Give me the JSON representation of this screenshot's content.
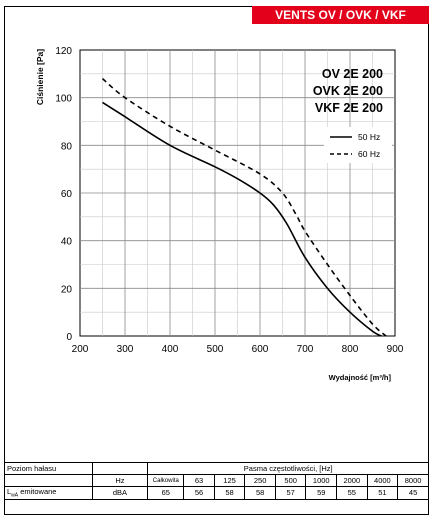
{
  "banner": "VENTS OV / OVK / VKF",
  "models": [
    "OV 2E 200",
    "OVK 2E 200",
    "VKF 2E 200"
  ],
  "chart_data": {
    "type": "line",
    "xlabel": "Wydajność [m³/h]",
    "ylabel": "Ciśnienie [Pa]",
    "xlim": [
      200,
      900
    ],
    "ylim": [
      0,
      120
    ],
    "x_ticks": [
      200,
      300,
      400,
      500,
      600,
      700,
      800,
      900
    ],
    "y_ticks": [
      0,
      20,
      40,
      60,
      80,
      100,
      120
    ],
    "grid": true,
    "legend_position": "right",
    "series": [
      {
        "name": "50 Hz",
        "style": "solid",
        "x": [
          250,
          300,
          400,
          500,
          550,
          600,
          630,
          660,
          700,
          750,
          800,
          850,
          870
        ],
        "y": [
          98,
          92,
          80,
          71,
          66,
          60,
          55,
          47,
          33,
          20,
          10,
          2,
          0
        ]
      },
      {
        "name": "60 Hz",
        "style": "dashed",
        "x": [
          250,
          300,
          400,
          500,
          600,
          650,
          680,
          700,
          750,
          800,
          850,
          880
        ],
        "y": [
          108,
          100,
          88,
          78,
          68,
          60,
          51,
          44,
          30,
          17,
          5,
          0
        ]
      }
    ]
  },
  "noise_table": {
    "title_label": "Poziom hałasu",
    "band_label": "Pasma częstotliwości, [Hz]",
    "hz_label": "Hz",
    "total_label": "Całkowita",
    "bands": [
      "63",
      "125",
      "250",
      "500",
      "1000",
      "2000",
      "4000",
      "8000"
    ],
    "row_label_main": "L",
    "row_label_sub": "wA",
    "row_label_rest": " emitowane",
    "unit": "dBA",
    "values": [
      "65",
      "56",
      "58",
      "58",
      "57",
      "59",
      "55",
      "51",
      "45"
    ]
  }
}
